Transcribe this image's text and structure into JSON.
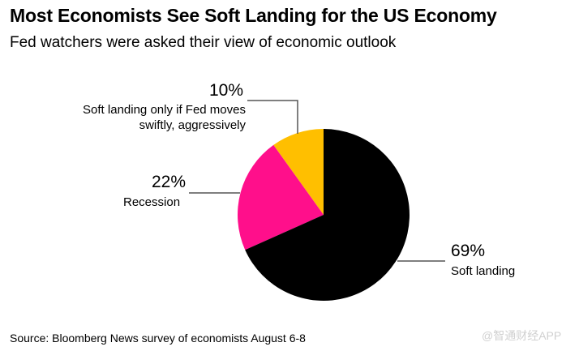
{
  "chart_data": {
    "type": "pie",
    "title": "Most Economists See Soft Landing for the US Economy",
    "subtitle": "Fed watchers were asked their view of economic outlook",
    "slices": [
      {
        "label": "Soft landing",
        "value": 69,
        "value_label": "69%",
        "color": "#000000"
      },
      {
        "label": "Recession",
        "value": 22,
        "value_label": "22%",
        "color": "#ff0f8b"
      },
      {
        "label_lines": [
          "Soft landing only if Fed moves",
          "swiftly, aggressively"
        ],
        "label": "Soft landing only if Fed moves swiftly, aggressively",
        "value": 10,
        "value_label": "10%",
        "color": "#ffbf00"
      }
    ],
    "source": "Source: Bloomberg News survey of economists August 6-8"
  },
  "watermark": "@智通财经APP"
}
